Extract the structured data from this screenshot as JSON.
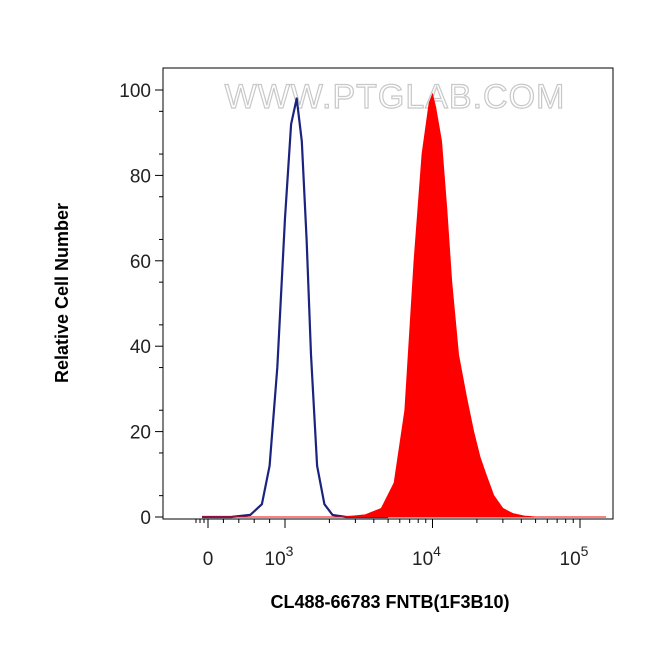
{
  "chart_data": {
    "type": "area",
    "xlabel": "CL488-66783 FNTB(1F3B10)",
    "ylabel": "Relative Cell Number",
    "watermark": "WWW.PTGLAB.COM",
    "x_scale": "biexponential",
    "xlim": [
      -1000,
      150000
    ],
    "ylim": [
      0,
      100
    ],
    "y_ticks": [
      0,
      20,
      40,
      60,
      80,
      100
    ],
    "x_ticks": [
      {
        "value": 0,
        "label": "0",
        "exponent": ""
      },
      {
        "value": 1000,
        "label": "10",
        "exponent": "3"
      },
      {
        "value": 10000,
        "label": "10",
        "exponent": "4"
      },
      {
        "value": 100000,
        "label": "10",
        "exponent": "5"
      }
    ],
    "grid": false,
    "series": [
      {
        "style": "outline",
        "color": "#1a237e",
        "x": [
          -300,
          300,
          550,
          700,
          800,
          900,
          1000,
          1100,
          1200,
          1300,
          1400,
          1500,
          1650,
          1850,
          2100,
          2600,
          5000
        ],
        "y": [
          0,
          0,
          0.5,
          3,
          12,
          35,
          70,
          92,
          98,
          88,
          65,
          38,
          12,
          3,
          0.5,
          0,
          0
        ]
      },
      {
        "style": "filled",
        "color": "#ff0000",
        "x": [
          -300,
          2500,
          3500,
          4500,
          5500,
          6500,
          7500,
          8500,
          9500,
          10000,
          10500,
          11500,
          12500,
          13500,
          15000,
          17000,
          19000,
          21000,
          23000,
          26000,
          30000,
          35000,
          42000,
          50000,
          150000
        ],
        "y": [
          0,
          0,
          0.5,
          2,
          8,
          25,
          60,
          85,
          97,
          99,
          96,
          88,
          72,
          55,
          38,
          28,
          20,
          14,
          10,
          5,
          2,
          0.8,
          0.2,
          0,
          0
        ]
      }
    ]
  }
}
